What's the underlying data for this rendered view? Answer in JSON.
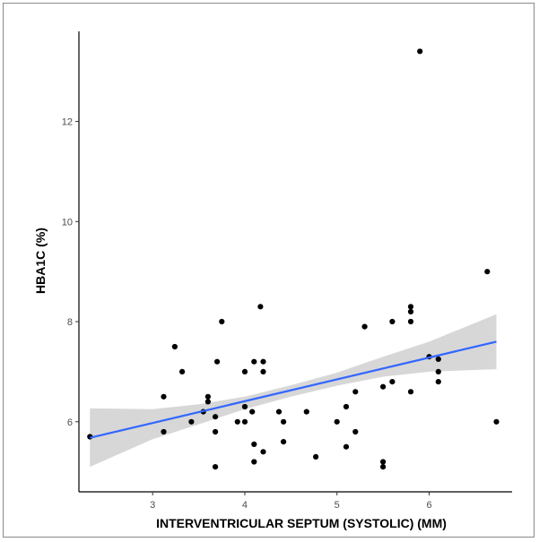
{
  "chart_data": {
    "type": "scatter",
    "title": "",
    "xlabel": "INTERVENTRICULAR SEPTUM (SYSTOLIC) (MM)",
    "ylabel": "HBA1C (%)",
    "xlim": [
      2.2,
      6.9
    ],
    "ylim": [
      4.6,
      13.8
    ],
    "x_ticks": [
      3,
      4,
      5,
      6
    ],
    "y_ticks": [
      6,
      8,
      10,
      12
    ],
    "x_tick_labels": [
      "3",
      "4",
      "5",
      "6"
    ],
    "y_tick_labels": [
      "6",
      "8",
      "10",
      "12"
    ],
    "grid": false,
    "legend": "none",
    "colors": {
      "points": "#000000",
      "fit_line": "#3366ff",
      "confidence_band": "#bdbdbd"
    },
    "points": [
      {
        "x": 2.32,
        "y": 5.7
      },
      {
        "x": 3.12,
        "y": 6.5
      },
      {
        "x": 3.12,
        "y": 5.8
      },
      {
        "x": 3.24,
        "y": 7.5
      },
      {
        "x": 3.32,
        "y": 7.0
      },
      {
        "x": 3.42,
        "y": 6.0
      },
      {
        "x": 3.55,
        "y": 6.2
      },
      {
        "x": 3.6,
        "y": 6.5
      },
      {
        "x": 3.6,
        "y": 6.4
      },
      {
        "x": 3.68,
        "y": 6.1
      },
      {
        "x": 3.68,
        "y": 5.8
      },
      {
        "x": 3.68,
        "y": 5.1
      },
      {
        "x": 3.7,
        "y": 7.2
      },
      {
        "x": 3.75,
        "y": 8.0
      },
      {
        "x": 3.92,
        "y": 6.0
      },
      {
        "x": 4.0,
        "y": 6.0
      },
      {
        "x": 4.0,
        "y": 6.3
      },
      {
        "x": 4.0,
        "y": 7.0
      },
      {
        "x": 4.08,
        "y": 6.2
      },
      {
        "x": 4.1,
        "y": 7.2
      },
      {
        "x": 4.1,
        "y": 5.55
      },
      {
        "x": 4.1,
        "y": 5.2
      },
      {
        "x": 4.17,
        "y": 8.3
      },
      {
        "x": 4.2,
        "y": 7.2
      },
      {
        "x": 4.2,
        "y": 7.0
      },
      {
        "x": 4.2,
        "y": 5.4
      },
      {
        "x": 4.37,
        "y": 6.2
      },
      {
        "x": 4.42,
        "y": 6.0
      },
      {
        "x": 4.42,
        "y": 5.6
      },
      {
        "x": 4.67,
        "y": 6.2
      },
      {
        "x": 4.77,
        "y": 5.3
      },
      {
        "x": 5.0,
        "y": 6.0
      },
      {
        "x": 5.1,
        "y": 6.3
      },
      {
        "x": 5.1,
        "y": 5.5
      },
      {
        "x": 5.2,
        "y": 6.6
      },
      {
        "x": 5.2,
        "y": 5.8
      },
      {
        "x": 5.3,
        "y": 7.9
      },
      {
        "x": 5.5,
        "y": 6.7
      },
      {
        "x": 5.5,
        "y": 5.2
      },
      {
        "x": 5.5,
        "y": 5.1
      },
      {
        "x": 5.6,
        "y": 8.0
      },
      {
        "x": 5.6,
        "y": 6.8
      },
      {
        "x": 5.8,
        "y": 8.3
      },
      {
        "x": 5.8,
        "y": 8.2
      },
      {
        "x": 5.8,
        "y": 8.0
      },
      {
        "x": 5.8,
        "y": 6.6
      },
      {
        "x": 5.9,
        "y": 13.4
      },
      {
        "x": 6.0,
        "y": 7.3
      },
      {
        "x": 6.1,
        "y": 7.0
      },
      {
        "x": 6.1,
        "y": 6.8
      },
      {
        "x": 6.1,
        "y": 7.25
      },
      {
        "x": 6.63,
        "y": 9.0
      },
      {
        "x": 6.73,
        "y": 6.0
      }
    ],
    "fit_line": {
      "x": [
        2.32,
        6.73
      ],
      "y": [
        5.68,
        7.6
      ]
    },
    "confidence_band": {
      "x": [
        2.32,
        3.0,
        3.5,
        4.0,
        4.5,
        5.0,
        5.5,
        6.0,
        6.73
      ],
      "lower": [
        5.1,
        5.65,
        5.95,
        6.25,
        6.5,
        6.72,
        6.9,
        7.0,
        7.05
      ],
      "upper": [
        6.27,
        6.25,
        6.35,
        6.5,
        6.73,
        6.98,
        7.3,
        7.6,
        8.15
      ]
    }
  }
}
